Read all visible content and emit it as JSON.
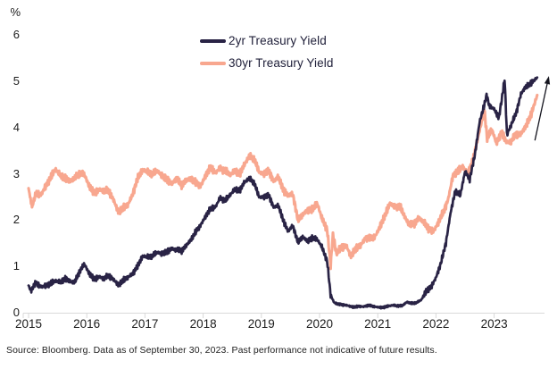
{
  "chart": {
    "y_axis_unit": "%",
    "source_note": "Source: Bloomberg. Data as of September 30, 2023. Past performance not indicative of future results.",
    "legend": [
      {
        "label": "2yr Treasury Yield",
        "color": "#292345"
      },
      {
        "label": "30yr Treasury Yield",
        "color": "#f8a78f"
      }
    ]
  },
  "chart_data": {
    "type": "line",
    "title": "",
    "xlabel": "",
    "ylabel": "%",
    "ylim": [
      0,
      6
    ],
    "xlim": [
      2015.0,
      2023.87
    ],
    "y_ticks": [
      6,
      5,
      4,
      3,
      2,
      1,
      0
    ],
    "x_ticks": [
      2015,
      2016,
      2017,
      2018,
      2019,
      2020,
      2021,
      2022,
      2023
    ],
    "grid": false,
    "legend_position": "top-center",
    "axis_color": "#d9d9d9",
    "series": [
      {
        "name": "2yr Treasury Yield",
        "color": "#292345",
        "x": [
          2015.0,
          2015.04,
          2015.13,
          2015.21,
          2015.29,
          2015.38,
          2015.46,
          2015.54,
          2015.63,
          2015.71,
          2015.79,
          2015.88,
          2015.96,
          2016.04,
          2016.13,
          2016.21,
          2016.29,
          2016.38,
          2016.46,
          2016.54,
          2016.63,
          2016.71,
          2016.79,
          2016.88,
          2016.96,
          2017.04,
          2017.13,
          2017.21,
          2017.29,
          2017.38,
          2017.46,
          2017.54,
          2017.63,
          2017.71,
          2017.79,
          2017.88,
          2017.96,
          2018.04,
          2018.13,
          2018.21,
          2018.29,
          2018.38,
          2018.46,
          2018.54,
          2018.63,
          2018.71,
          2018.79,
          2018.88,
          2018.96,
          2019.04,
          2019.13,
          2019.21,
          2019.29,
          2019.38,
          2019.46,
          2019.54,
          2019.63,
          2019.71,
          2019.79,
          2019.88,
          2019.96,
          2020.04,
          2020.13,
          2020.19,
          2020.25,
          2020.33,
          2020.42,
          2020.5,
          2020.58,
          2020.67,
          2020.75,
          2020.83,
          2020.92,
          2021.0,
          2021.08,
          2021.17,
          2021.25,
          2021.33,
          2021.42,
          2021.5,
          2021.58,
          2021.67,
          2021.75,
          2021.83,
          2021.92,
          2022.0,
          2022.08,
          2022.17,
          2022.25,
          2022.33,
          2022.42,
          2022.5,
          2022.58,
          2022.67,
          2022.75,
          2022.83,
          2022.87,
          2022.92,
          2023.0,
          2023.08,
          2023.13,
          2023.18,
          2023.22,
          2023.29,
          2023.38,
          2023.46,
          2023.54,
          2023.63,
          2023.74
        ],
        "values": [
          0.58,
          0.48,
          0.65,
          0.56,
          0.58,
          0.63,
          0.69,
          0.66,
          0.73,
          0.68,
          0.65,
          0.9,
          1.05,
          0.85,
          0.72,
          0.78,
          0.74,
          0.8,
          0.72,
          0.6,
          0.7,
          0.77,
          0.84,
          1.02,
          1.22,
          1.2,
          1.23,
          1.3,
          1.27,
          1.32,
          1.38,
          1.36,
          1.34,
          1.45,
          1.58,
          1.76,
          1.9,
          2.08,
          2.25,
          2.28,
          2.48,
          2.42,
          2.54,
          2.66,
          2.64,
          2.82,
          2.9,
          2.8,
          2.5,
          2.5,
          2.53,
          2.28,
          2.32,
          1.98,
          1.76,
          1.88,
          1.52,
          1.64,
          1.54,
          1.62,
          1.58,
          1.42,
          1.12,
          0.38,
          0.22,
          0.18,
          0.17,
          0.15,
          0.12,
          0.14,
          0.13,
          0.16,
          0.14,
          0.12,
          0.11,
          0.14,
          0.16,
          0.15,
          0.15,
          0.23,
          0.2,
          0.22,
          0.28,
          0.46,
          0.56,
          0.76,
          1.05,
          1.5,
          2.15,
          2.62,
          2.55,
          3.05,
          2.88,
          3.42,
          4.12,
          4.48,
          4.7,
          4.45,
          4.4,
          4.2,
          4.6,
          5.05,
          3.85,
          4.05,
          4.32,
          4.72,
          4.88,
          4.95,
          5.08
        ]
      },
      {
        "name": "30yr Treasury Yield",
        "color": "#f8a78f",
        "x": [
          2015.0,
          2015.06,
          2015.13,
          2015.21,
          2015.29,
          2015.38,
          2015.46,
          2015.54,
          2015.63,
          2015.71,
          2015.79,
          2015.88,
          2015.96,
          2016.04,
          2016.13,
          2016.21,
          2016.29,
          2016.38,
          2016.46,
          2016.54,
          2016.63,
          2016.71,
          2016.79,
          2016.88,
          2016.96,
          2017.04,
          2017.13,
          2017.21,
          2017.29,
          2017.38,
          2017.46,
          2017.54,
          2017.63,
          2017.71,
          2017.79,
          2017.88,
          2017.96,
          2018.04,
          2018.13,
          2018.21,
          2018.29,
          2018.38,
          2018.46,
          2018.54,
          2018.63,
          2018.71,
          2018.79,
          2018.88,
          2018.96,
          2019.04,
          2019.13,
          2019.21,
          2019.29,
          2019.38,
          2019.46,
          2019.54,
          2019.63,
          2019.71,
          2019.79,
          2019.88,
          2019.96,
          2020.04,
          2020.13,
          2020.19,
          2020.23,
          2020.29,
          2020.38,
          2020.46,
          2020.54,
          2020.63,
          2020.71,
          2020.79,
          2020.88,
          2020.96,
          2021.04,
          2021.13,
          2021.21,
          2021.29,
          2021.38,
          2021.46,
          2021.54,
          2021.63,
          2021.71,
          2021.79,
          2021.88,
          2021.96,
          2022.04,
          2022.13,
          2022.21,
          2022.29,
          2022.38,
          2022.46,
          2022.54,
          2022.63,
          2022.71,
          2022.79,
          2022.83,
          2022.88,
          2022.96,
          2023.04,
          2023.13,
          2023.21,
          2023.29,
          2023.38,
          2023.46,
          2023.54,
          2023.63,
          2023.74
        ],
        "values": [
          2.68,
          2.28,
          2.6,
          2.54,
          2.72,
          2.92,
          3.1,
          2.98,
          2.9,
          2.84,
          2.9,
          3.02,
          2.98,
          2.74,
          2.58,
          2.66,
          2.64,
          2.63,
          2.44,
          2.18,
          2.26,
          2.34,
          2.56,
          2.92,
          3.08,
          3.04,
          3.0,
          3.06,
          2.96,
          2.88,
          2.78,
          2.9,
          2.76,
          2.86,
          2.9,
          2.8,
          2.74,
          2.96,
          3.14,
          3.02,
          3.12,
          3.06,
          2.98,
          3.06,
          3.0,
          3.2,
          3.38,
          3.32,
          3.04,
          3.0,
          3.06,
          2.84,
          2.94,
          2.64,
          2.54,
          2.56,
          2.0,
          2.12,
          2.2,
          2.24,
          2.36,
          2.04,
          1.8,
          1.02,
          1.68,
          1.28,
          1.42,
          1.44,
          1.22,
          1.4,
          1.46,
          1.62,
          1.6,
          1.66,
          1.86,
          2.12,
          2.36,
          2.28,
          2.3,
          2.08,
          1.9,
          1.93,
          2.04,
          1.96,
          1.8,
          1.76,
          1.95,
          2.18,
          2.45,
          2.95,
          3.06,
          3.16,
          3.0,
          3.26,
          3.72,
          4.15,
          4.4,
          3.76,
          3.96,
          3.66,
          3.9,
          3.68,
          3.7,
          3.86,
          3.86,
          4.02,
          4.26,
          4.7
        ]
      }
    ],
    "annotations": [
      {
        "type": "arrow",
        "color": "#15151f",
        "from_x": 2023.7,
        "from_y": 3.72,
        "to_x": 2023.94,
        "to_y": 5.11
      }
    ]
  }
}
